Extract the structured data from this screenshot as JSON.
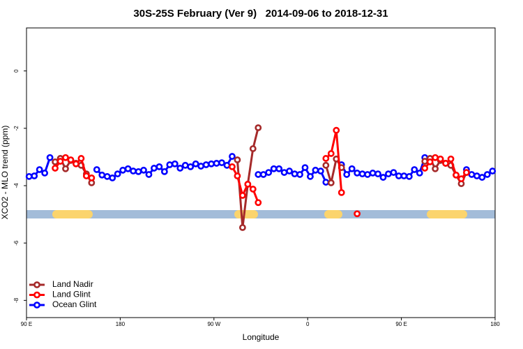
{
  "chart_data": {
    "type": "line",
    "title": "30S-25S February (Ver 9)   2014-09-06 to 2018-12-31",
    "x_label": "Longitude",
    "y_label": "XCO2 - MLO trend (ppm)",
    "x": [
      92.5,
      97.5,
      102.5,
      107.5,
      112.5,
      117.5,
      122.5,
      127.5,
      132.5,
      137.5,
      142.5,
      147.5,
      152.5,
      157.5,
      162.5,
      167.5,
      172.5,
      177.5,
      182.5,
      187.5,
      192.5,
      197.5,
      202.5,
      207.5,
      212.5,
      217.5,
      222.5,
      227.5,
      232.5,
      237.5,
      242.5,
      247.5,
      252.5,
      257.5,
      262.5,
      267.5,
      272.5,
      277.5,
      282.5,
      287.5,
      292.5,
      297.5,
      302.5,
      307.5,
      312.5,
      317.5,
      322.5,
      327.5,
      332.5,
      337.5,
      342.5,
      347.5,
      352.5,
      357.5,
      362.5,
      367.5,
      372.5,
      377.5,
      382.5,
      387.5,
      392.5,
      397.5,
      402.5,
      407.5,
      412.5,
      417.5,
      422.5,
      427.5,
      432.5,
      437.5,
      442.5,
      447.5,
      452.5,
      457.5,
      462.5,
      467.5,
      472.5,
      477.5,
      482.5,
      487.5,
      492.5,
      497.5,
      502.5,
      507.5,
      512.5,
      517.5,
      522.5,
      527.5,
      532.5,
      537.5
    ],
    "series": [
      {
        "name": "Land Nadir",
        "color": "#a52a2a",
        "values": [
          null,
          null,
          null,
          null,
          null,
          -3.17,
          -3.05,
          -3.41,
          -3.12,
          -3.22,
          -3.29,
          -3.59,
          -3.9,
          null,
          null,
          null,
          null,
          null,
          null,
          null,
          null,
          null,
          null,
          null,
          null,
          null,
          null,
          null,
          null,
          null,
          null,
          null,
          null,
          null,
          null,
          null,
          null,
          null,
          null,
          null,
          -3.1,
          -5.46,
          -3.95,
          -2.71,
          -1.98,
          null,
          null,
          null,
          null,
          null,
          null,
          null,
          null,
          null,
          null,
          null,
          null,
          -3.29,
          -3.9,
          -3.07,
          -3.37,
          null,
          null,
          null,
          null,
          null,
          null,
          null,
          null,
          null,
          null,
          null,
          null,
          null,
          null,
          null,
          -3.15,
          -3.05,
          -3.41,
          -3.12,
          -3.22,
          -3.29,
          -3.63,
          -3.93,
          -3.54,
          null,
          null,
          null,
          null,
          null
        ]
      },
      {
        "name": "Land Glint",
        "color": "#ff0000",
        "values": [
          null,
          null,
          null,
          null,
          null,
          -3.39,
          -3.15,
          -3.02,
          -3.1,
          -3.24,
          -3.05,
          -3.66,
          -3.73,
          null,
          null,
          null,
          null,
          null,
          null,
          null,
          null,
          null,
          null,
          null,
          null,
          null,
          null,
          null,
          null,
          null,
          null,
          null,
          null,
          null,
          null,
          null,
          null,
          null,
          null,
          -3.34,
          -3.66,
          -4.34,
          -3.95,
          -4.12,
          -4.59,
          null,
          null,
          null,
          null,
          null,
          null,
          null,
          null,
          null,
          null,
          null,
          null,
          -3.05,
          -2.88,
          -2.07,
          -4.24,
          null,
          null,
          -4.98,
          null,
          null,
          null,
          null,
          null,
          null,
          null,
          null,
          null,
          null,
          null,
          null,
          -3.39,
          -3.17,
          -3.02,
          -3.07,
          -3.22,
          -3.07,
          -3.63,
          -3.76,
          -3.54,
          null,
          null,
          null,
          null,
          null
        ]
      },
      {
        "name": "Ocean Glint",
        "color": "#0000ff",
        "values": [
          -3.68,
          -3.66,
          -3.44,
          -3.56,
          -3.02,
          null,
          null,
          null,
          null,
          null,
          null,
          null,
          null,
          -3.44,
          -3.63,
          -3.68,
          -3.73,
          -3.59,
          -3.46,
          -3.41,
          -3.49,
          -3.51,
          -3.46,
          -3.61,
          -3.39,
          -3.34,
          -3.51,
          -3.27,
          -3.24,
          -3.39,
          -3.29,
          -3.34,
          -3.24,
          -3.32,
          -3.27,
          -3.24,
          -3.22,
          -3.2,
          -3.29,
          -2.98,
          null,
          null,
          null,
          null,
          -3.61,
          -3.61,
          -3.54,
          -3.41,
          -3.41,
          -3.54,
          -3.49,
          -3.59,
          -3.61,
          -3.37,
          -3.68,
          -3.46,
          -3.49,
          -3.88,
          null,
          null,
          -3.27,
          -3.61,
          -3.41,
          -3.56,
          -3.59,
          -3.61,
          -3.56,
          -3.59,
          -3.71,
          -3.59,
          -3.54,
          -3.66,
          -3.66,
          -3.68,
          -3.44,
          -3.56,
          -3.02,
          null,
          null,
          null,
          null,
          null,
          null,
          null,
          -3.44,
          -3.61,
          -3.66,
          -3.71,
          -3.61,
          -3.49
        ]
      }
    ],
    "xlim": [
      90,
      540
    ],
    "xticks": [
      {
        "value": 90,
        "label": "90 E"
      },
      180,
      {
        "value": 270,
        "label": "90 W"
      },
      {
        "value": 360,
        "label": "0"
      },
      {
        "value": 450,
        "label": "90 E"
      },
      {
        "value": 540,
        "label": "180"
      }
    ],
    "ylim": [
      -8.6,
      1.5
    ],
    "yticks": [
      0,
      -2,
      -4,
      -6,
      -8
    ],
    "legend": "bottomleft",
    "grid": false
  }
}
